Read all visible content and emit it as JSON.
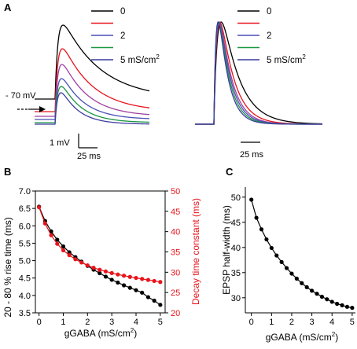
{
  "panels": {
    "a": "A",
    "b": "B",
    "c": "C"
  },
  "panel_a": {
    "legend": [
      {
        "label": "0",
        "color": "#000000"
      },
      {
        "label": "",
        "color": "#e8141b"
      },
      {
        "label": "2",
        "color": "#4a4fb6"
      },
      {
        "label": "",
        "color": "#1a9641"
      },
      {
        "label": "5 mS/cm²",
        "color": "#3c3ca0"
      }
    ],
    "extra_colors": [
      "#a040a0"
    ],
    "resting_label": "- 70 mV",
    "scale_voltage": "1 mV",
    "scale_time": "25 ms",
    "right_scale_time": "25 ms"
  },
  "chart_data": [
    {
      "type": "line",
      "panel": "B",
      "xlabel": "gGABA (mS/cm²)",
      "ylabel": "20 - 80 % rise time (ms)",
      "ylabel_right": "Decay time constant (ms)",
      "xlim": [
        0,
        5
      ],
      "ylim": [
        3.5,
        7.0
      ],
      "ylim_right": [
        20,
        50
      ],
      "xticks": [
        "0",
        "1",
        "2",
        "3",
        "4",
        "5"
      ],
      "yticks": [
        "3.5",
        "4.0",
        "4.5",
        "5.0",
        "5.5",
        "6.0",
        "6.5",
        "7.0"
      ],
      "yticks_right": [
        "20",
        "25",
        "30",
        "35",
        "40",
        "45",
        "50"
      ],
      "x": [
        0,
        0.25,
        0.5,
        0.75,
        1.0,
        1.25,
        1.5,
        1.75,
        2.0,
        2.25,
        2.5,
        2.75,
        3.0,
        3.25,
        3.5,
        3.75,
        4.0,
        4.25,
        4.5,
        4.75,
        5.0
      ],
      "series": [
        {
          "axis": "left",
          "color": "#000000",
          "values": [
            6.55,
            6.14,
            5.84,
            5.6,
            5.41,
            5.24,
            5.1,
            4.97,
            4.85,
            4.74,
            4.64,
            4.54,
            4.45,
            4.37,
            4.29,
            4.22,
            4.15,
            4.08,
            3.95,
            3.85,
            3.73
          ]
        },
        {
          "axis": "right",
          "color": "#e8141b",
          "values": [
            46.0,
            42.0,
            39.1,
            37.0,
            35.4,
            34.2,
            33.2,
            32.4,
            31.7,
            31.1,
            30.6,
            30.2,
            29.8,
            29.45,
            29.15,
            28.85,
            28.6,
            28.35,
            28.1,
            27.85,
            27.6
          ]
        }
      ]
    },
    {
      "type": "line",
      "panel": "C",
      "xlabel": "gGABA (mS/cm²)",
      "ylabel": "EPSP half-width (ms)",
      "xlim": [
        0,
        5
      ],
      "ylim": [
        27,
        52
      ],
      "xticks": [
        "0",
        "1",
        "2",
        "3",
        "4",
        "5"
      ],
      "yticks": [
        "30",
        "35",
        "40",
        "45",
        "50"
      ],
      "x": [
        0,
        0.25,
        0.5,
        0.75,
        1.0,
        1.25,
        1.5,
        1.75,
        2.0,
        2.25,
        2.5,
        2.75,
        3.0,
        3.25,
        3.5,
        3.75,
        4.0,
        4.25,
        4.5,
        4.75,
        5.0
      ],
      "series": [
        {
          "color": "#000000",
          "values": [
            49.5,
            45.9,
            43.6,
            41.6,
            39.9,
            38.4,
            37.1,
            35.9,
            34.8,
            33.8,
            32.9,
            32.1,
            31.4,
            30.8,
            30.2,
            29.7,
            29.2,
            28.8,
            28.5,
            28.2,
            28.0
          ]
        }
      ]
    }
  ]
}
